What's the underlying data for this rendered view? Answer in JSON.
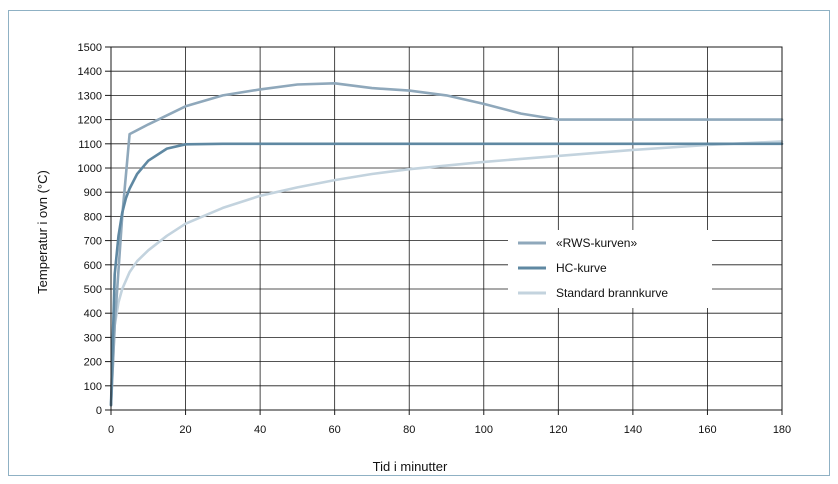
{
  "chart_data": {
    "type": "line",
    "title": "",
    "xlabel": "Tid i minutter",
    "ylabel": "Temperatur i ovn (°C)",
    "xlim": [
      0,
      180
    ],
    "ylim": [
      0,
      1500
    ],
    "xticks": [
      0,
      20,
      40,
      60,
      80,
      100,
      120,
      140,
      160,
      180
    ],
    "yticks": [
      0,
      100,
      200,
      300,
      400,
      500,
      600,
      700,
      800,
      900,
      1000,
      1100,
      1200,
      1300,
      1400,
      1500
    ],
    "grid": true,
    "legend_position": "center-right",
    "series": [
      {
        "name": "«RWS-kurven»",
        "color": "#8fa8bb",
        "x": [
          0,
          1,
          3,
          5,
          10,
          20,
          30,
          40,
          50,
          60,
          70,
          80,
          90,
          100,
          110,
          120,
          140,
          160,
          180
        ],
        "y": [
          20,
          350,
          800,
          1140,
          1180,
          1255,
          1300,
          1325,
          1345,
          1350,
          1330,
          1320,
          1300,
          1265,
          1225,
          1200,
          1200,
          1200,
          1200
        ]
      },
      {
        "name": "HC-kurve",
        "color": "#5f88a2",
        "x": [
          0,
          0.5,
          1,
          2,
          3,
          4,
          5,
          7,
          10,
          15,
          20,
          30,
          60,
          90,
          120,
          150,
          180
        ],
        "y": [
          20,
          300,
          560,
          720,
          815,
          875,
          915,
          975,
          1030,
          1080,
          1098,
          1100,
          1100,
          1100,
          1100,
          1100,
          1100
        ]
      },
      {
        "name": "Standard brannkurve",
        "color": "#c3d3de",
        "x": [
          0,
          1,
          2,
          3,
          5,
          7,
          10,
          15,
          20,
          30,
          40,
          50,
          60,
          70,
          80,
          90,
          100,
          120,
          140,
          160,
          180
        ],
        "y": [
          20,
          350,
          445,
          500,
          570,
          615,
          660,
          720,
          770,
          835,
          885,
          920,
          950,
          975,
          995,
          1010,
          1025,
          1050,
          1075,
          1095,
          1110
        ]
      }
    ]
  }
}
